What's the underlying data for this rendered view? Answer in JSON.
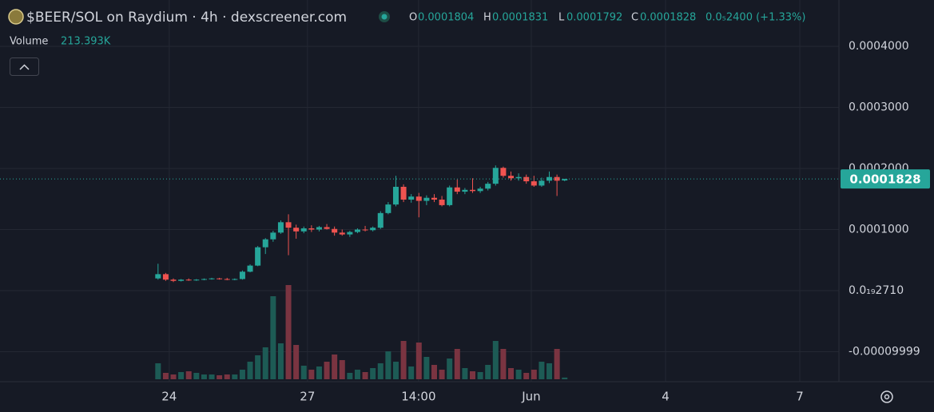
{
  "chart_data": {
    "type": "candlestick",
    "title": "$BEER/SOL on Raydium · 4h · dexscreener.com",
    "readout_labels": {
      "open": "O",
      "high": "H",
      "low": "L",
      "close": "C"
    },
    "change_label": "0.0₅2400 (+1.33%)",
    "volume_name": "Volume",
    "volume_value_label": "213.393K",
    "up_color": "#26a69a",
    "down_color": "#ef5350",
    "volume_up_color": "#1d5b55",
    "volume_down_color": "#7a3441",
    "open": [
      2e-05,
      2.7e-05,
      1.8e-05,
      1.6e-05,
      1.8e-05,
      1.7e-05,
      1.8e-05,
      1.9e-05,
      2e-05,
      1.9e-05,
      1.8e-05,
      1.9e-05,
      3.1e-05,
      4.1e-05,
      7.1e-05,
      8.4e-05,
      9.5e-05,
      0.000112,
      0.000103,
      9.7e-05,
      0.000102,
      0.0001,
      0.000104,
      0.000101,
      9.5e-05,
      9.2e-05,
      9.6e-05,
      0.0001,
      9.9e-05,
      0.000103,
      0.000127,
      0.000141,
      0.00017,
      0.000149,
      0.000154,
      0.000147,
      0.000152,
      0.000149,
      0.00014,
      0.000169,
      0.000162,
      0.000165,
      0.000163,
      0.000167,
      0.000175,
      0.000201,
      0.000188,
      0.000184,
      0.000186,
      0.000179,
      0.000172,
      0.00018,
      0.000186,
      0.0001804
    ],
    "high": [
      4.4e-05,
      2.9e-05,
      2e-05,
      1.9e-05,
      2e-05,
      1.9e-05,
      2e-05,
      2.1e-05,
      2.1e-05,
      2.1e-05,
      2e-05,
      3.3e-05,
      4.3e-05,
      7.3e-05,
      8.6e-05,
      9.8e-05,
      0.000115,
      0.000125,
      0.000108,
      0.000105,
      0.000107,
      0.000106,
      0.000109,
      0.000105,
      0.0001,
      9.8e-05,
      0.000102,
      0.000106,
      0.000105,
      0.00013,
      0.000145,
      0.000188,
      0.000174,
      0.000158,
      0.00016,
      0.000156,
      0.000158,
      0.000155,
      0.000172,
      0.000182,
      0.000168,
      0.000184,
      0.00017,
      0.000178,
      0.000205,
      0.000203,
      0.000195,
      0.000192,
      0.00019,
      0.000188,
      0.000185,
      0.000195,
      0.00019,
      0.0001831
    ],
    "low": [
      1.8e-05,
      1.6e-05,
      1.4e-05,
      1.5e-05,
      1.6e-05,
      1.6e-05,
      1.7e-05,
      1.8e-05,
      1.8e-05,
      1.7e-05,
      1.7e-05,
      1.8e-05,
      3e-05,
      4e-05,
      6e-05,
      8e-05,
      9.3e-05,
      5.8e-05,
      8.5e-05,
      9.4e-05,
      9.6e-05,
      9.7e-05,
      0.0001,
      9e-05,
      9e-05,
      8.8e-05,
      9.4e-05,
      9.7e-05,
      9.7e-05,
      0.000101,
      0.000125,
      0.000138,
      0.000145,
      0.000144,
      0.00012,
      0.00014,
      0.000145,
      0.000138,
      0.000138,
      0.000158,
      0.000158,
      0.00016,
      0.00016,
      0.000164,
      0.000172,
      0.000185,
      0.00018,
      0.00018,
      0.000175,
      0.00017,
      0.00017,
      0.000176,
      0.000155,
      0.0001792
    ],
    "close": [
      2.7e-05,
      1.8e-05,
      1.6e-05,
      1.8e-05,
      1.7e-05,
      1.8e-05,
      1.9e-05,
      2e-05,
      1.9e-05,
      1.8e-05,
      1.9e-05,
      3.1e-05,
      4.1e-05,
      7.1e-05,
      8.4e-05,
      9.5e-05,
      0.000112,
      0.000103,
      9.7e-05,
      0.000102,
      0.0001,
      0.000104,
      0.000101,
      9.5e-05,
      9.2e-05,
      9.6e-05,
      0.0001,
      9.9e-05,
      0.000103,
      0.000127,
      0.000141,
      0.00017,
      0.000149,
      0.000154,
      0.000147,
      0.000152,
      0.000149,
      0.00014,
      0.000169,
      0.000162,
      0.000165,
      0.000163,
      0.000167,
      0.000175,
      0.000201,
      0.000188,
      0.000184,
      0.000186,
      0.000179,
      0.000172,
      0.00018,
      0.000186,
      0.00018,
      0.0001828
    ],
    "volume": [
      2000000,
      800000,
      600000,
      900000,
      1000000,
      800000,
      600000,
      600000,
      500000,
      600000,
      600000,
      1200000,
      2200000,
      3000000,
      4000000,
      10400000,
      4500000,
      11800000,
      4300000,
      1700000,
      1200000,
      1600000,
      2200000,
      3100000,
      2400000,
      800000,
      1200000,
      900000,
      1400000,
      2000000,
      3500000,
      2200000,
      4800000,
      1600000,
      4600000,
      2800000,
      1800000,
      1200000,
      2600000,
      3800000,
      1400000,
      1000000,
      900000,
      1800000,
      4800000,
      3800000,
      1400000,
      1200000,
      800000,
      1200000,
      2200000,
      2000000,
      3800000,
      213393
    ],
    "xlim": [
      -20.6,
      88.75
    ],
    "xticks": [
      {
        "value": 1.46,
        "label": "24"
      },
      {
        "value": 19.48,
        "label": "27"
      },
      {
        "value": 33.96,
        "label": "14:00"
      },
      {
        "value": 48.65,
        "label": "Jun"
      },
      {
        "value": 66.15,
        "label": "4"
      },
      {
        "value": 83.65,
        "label": "7"
      }
    ],
    "ylim": [
      -0.000149,
      0.0004758
    ],
    "yticks": [
      {
        "value": 0.0004,
        "label": "0.0004000"
      },
      {
        "value": 0.0003,
        "label": "0.0003000"
      },
      {
        "value": 0.0002,
        "label": "0.0002000"
      },
      {
        "value": 0.0001,
        "label": "0.0001000"
      },
      {
        "value": 2.71e-20,
        "label": "0.0₁₉2710"
      },
      -9.999e-05
    ],
    "grid": true
  }
}
